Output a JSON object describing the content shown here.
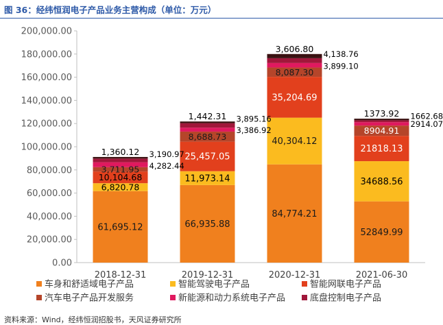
{
  "figure_title": "图 36：经纬恒润电子产品业务主营构成（单位：万元）",
  "source_text": "资料来源：Wind，经纬恒润招股书，天风证券研究所",
  "chart_data": {
    "type": "bar",
    "stacked": true,
    "title": "图 36：经纬恒润电子产品业务主营构成（单位：万元）",
    "categories": [
      "2018-12-31",
      "2019-12-31",
      "2020-12-31",
      "2021-06-30"
    ],
    "ylim": [
      0,
      200000
    ],
    "y_ticks": [
      "0.00",
      "20,000.00",
      "40,000.00",
      "60,000.00",
      "80,000.00",
      "100,000.00",
      "120,000.00",
      "140,000.00",
      "160,000.00",
      "180,000.00",
      "200,000.00"
    ],
    "legend_position": "bottom",
    "series": [
      {
        "name": "车身和舒适域电子产品",
        "color": "#f0801e",
        "values": [
          61695.12,
          66935.88,
          84774.21,
          52849.99
        ],
        "labels": [
          "61,695.12",
          "66,935.88",
          "84,774.21",
          "52849.99"
        ]
      },
      {
        "name": "智能驾驶电子产品",
        "color": "#fbbb1f",
        "values": [
          6820.78,
          11973.14,
          40304.12,
          34688.56
        ],
        "labels": [
          "6,820.78",
          "11,973.14",
          "40,304.12",
          "34688.56"
        ]
      },
      {
        "name": "智能网联电子产品",
        "color": "#e2401d",
        "values": [
          10104.68,
          25457.05,
          35204.69,
          21818.13
        ],
        "labels": [
          "10,104.68",
          "25,457.05",
          "35,204.69",
          "21818.13"
        ]
      },
      {
        "name": "汽车电子产品开发服务",
        "color": "#b5452a",
        "values": [
          3711.95,
          8688.73,
          8087.3,
          8904.91
        ],
        "labels": [
          "3,711.95",
          "8,688.73",
          "8,087.30",
          "8904.91"
        ]
      },
      {
        "name": "新能源和动力系统电子产品",
        "color": "#e0195f",
        "values": [
          4282.44,
          3386.92,
          3899.1,
          2914.07
        ],
        "labels": [
          "4,282.44",
          "3,386.92",
          "3,899.10",
          "2914.07"
        ]
      },
      {
        "name": "底盘控制电子产品",
        "color": "#a0173a",
        "values": [
          3190.97,
          3895.16,
          4138.76,
          1662.68
        ],
        "labels": [
          "3,190.97",
          "3,895.16",
          "4,138.76",
          "1662.68"
        ]
      },
      {
        "name": "",
        "color": "#3a1212",
        "values": [
          1360.12,
          1442.31,
          3606.8,
          1373.92
        ],
        "labels": [
          "1,360.12",
          "1,442.31",
          "3,606.80",
          "1373.92"
        ]
      }
    ]
  }
}
